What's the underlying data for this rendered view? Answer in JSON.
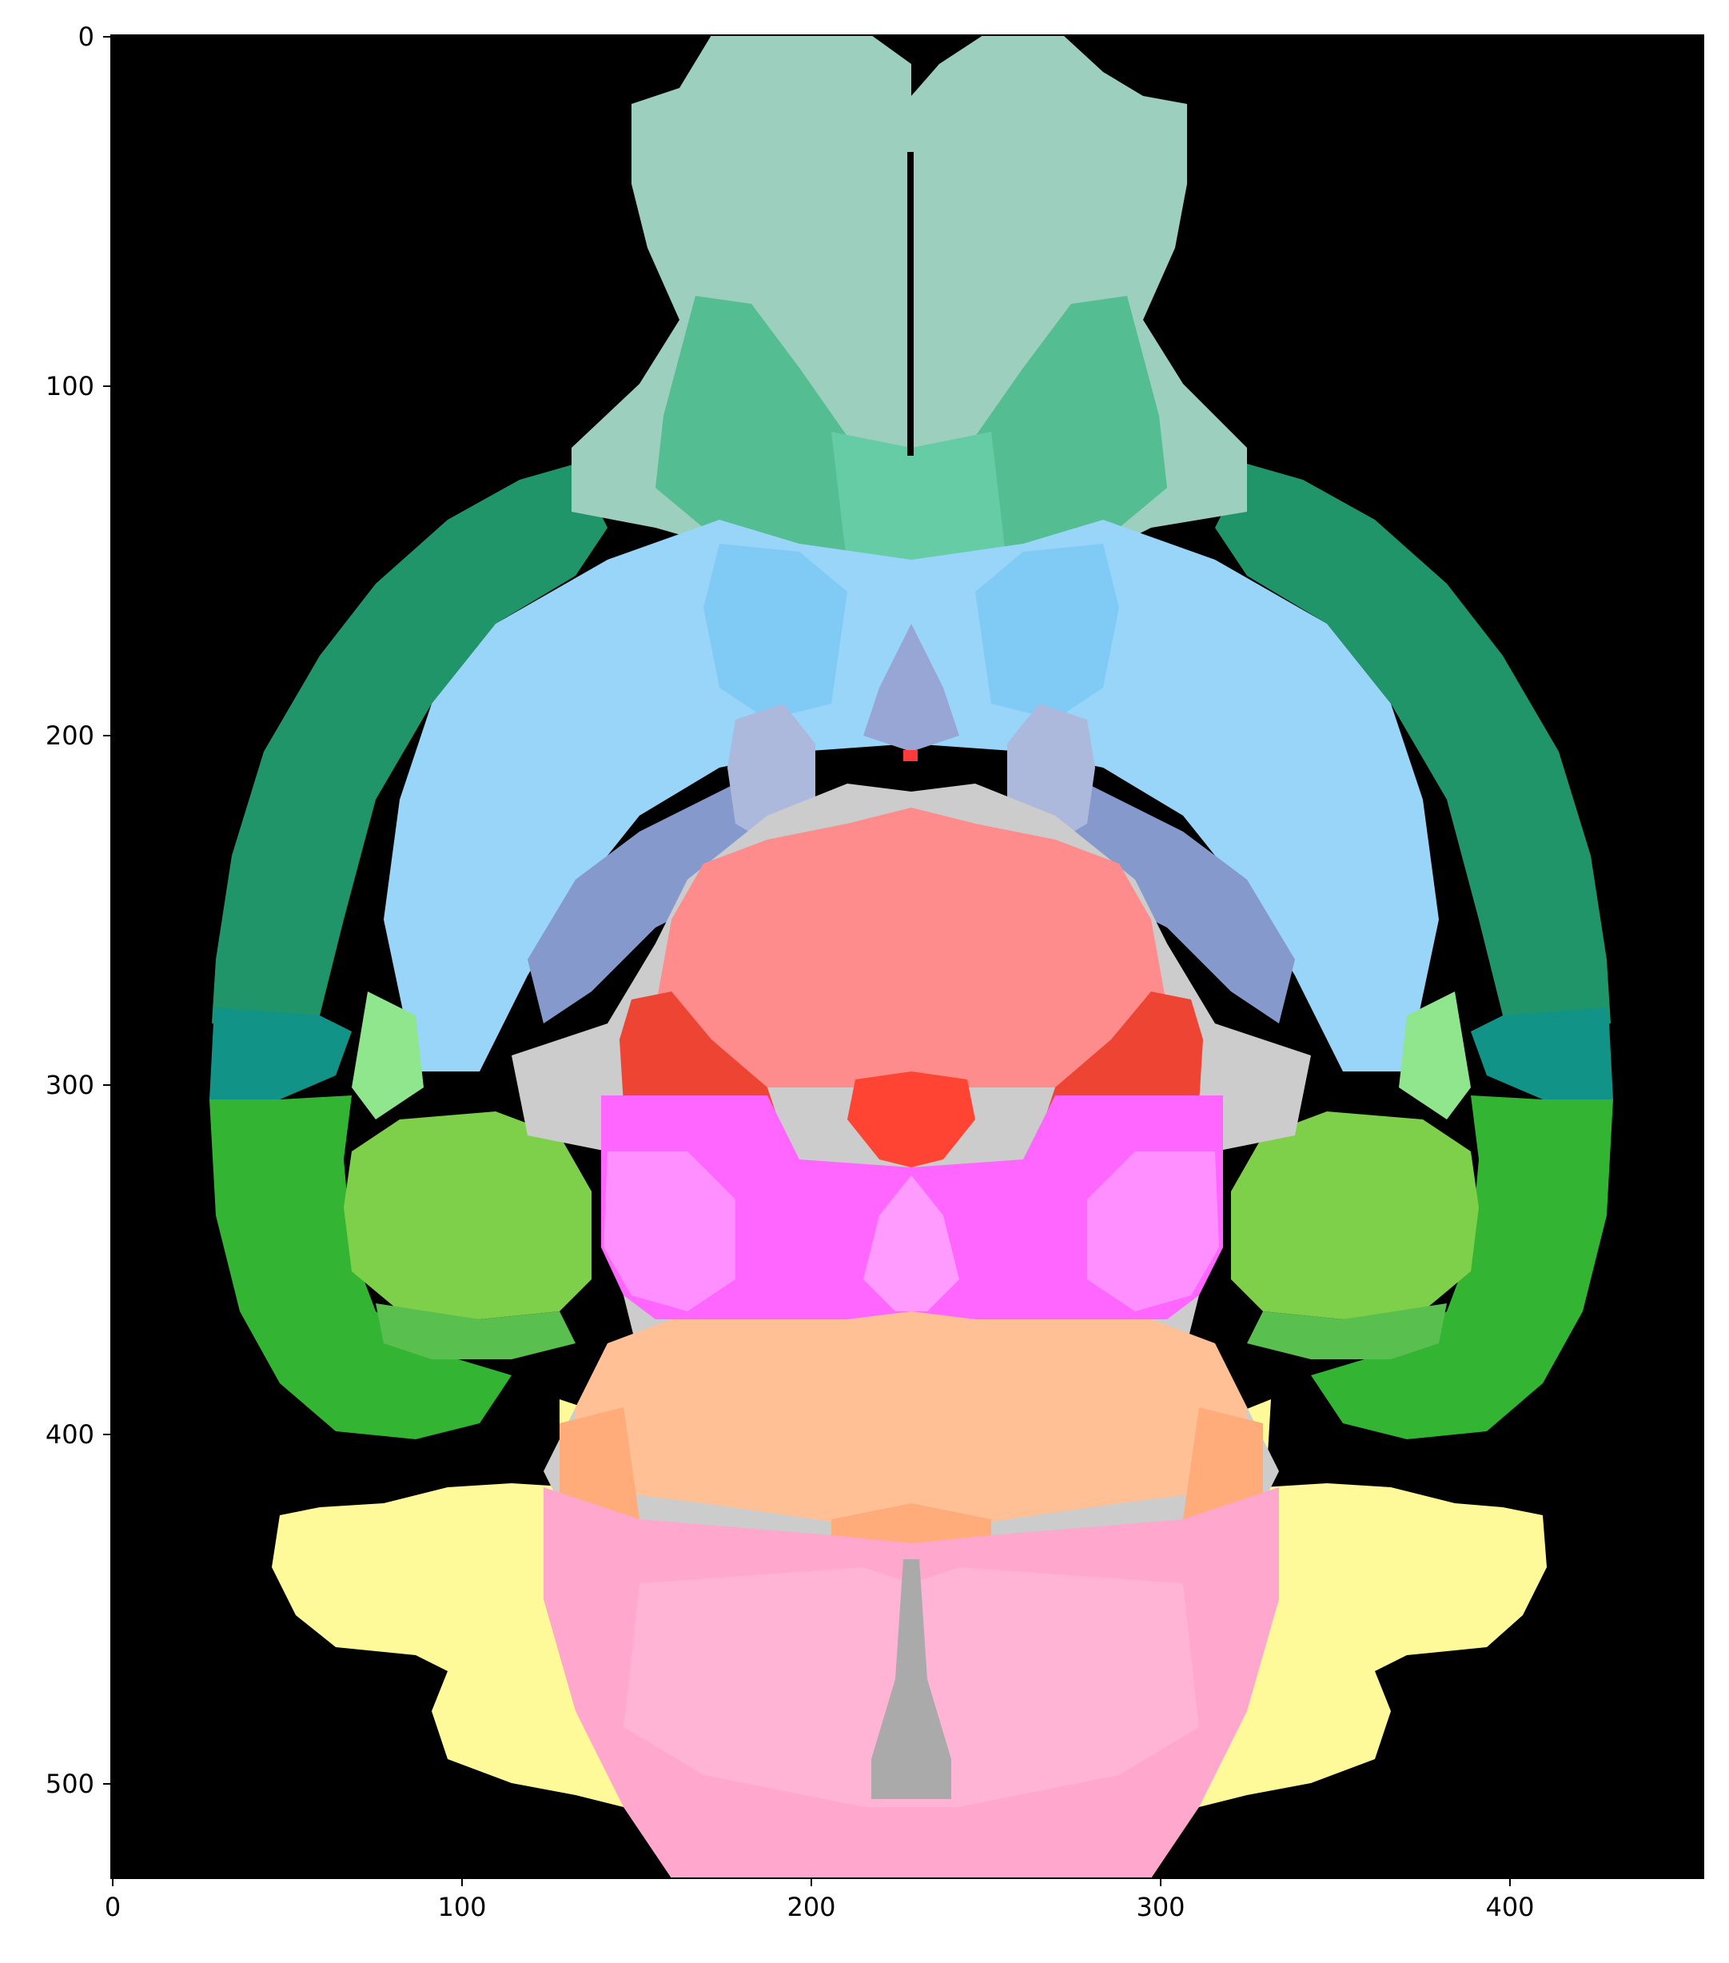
{
  "figure": {
    "type": "image",
    "title": "",
    "xlabel": "",
    "ylabel": "",
    "xlim": [
      0,
      456
    ],
    "ylim": [
      528,
      0
    ],
    "x_ticks": [
      "0",
      "100",
      "200",
      "300",
      "400"
    ],
    "y_ticks": [
      "0",
      "100",
      "200",
      "300",
      "400",
      "500"
    ],
    "background_color": "#000000",
    "palette": {
      "olfactory": "#9ccfbd",
      "olfactory_dark": "#54bd92",
      "cortex_dark": "#21956a",
      "cortex_teal": "#119487",
      "cortex_green": "#33b533",
      "hippocampus_light": "#7ecf4a",
      "hippocampus_mid": "#59bf4f",
      "striatum_light": "#98d5f8",
      "striatum_mid": "#80cbf5",
      "pallidum": "#8599cc",
      "pallidum_light": "#adb9dc",
      "thalamus": "#ff8c8c",
      "thalamus_dark": "#ee4433",
      "hypothalamus": "#ff66ff",
      "hypothalamus_light": "#ff8fff",
      "midbrain": "#ffc095",
      "midbrain_dark": "#ffab7a",
      "hindbrain": "#ffa7cc",
      "cerebellum": "#fffa99",
      "fiber_tracts": "#cccccc",
      "ventricles": "#aaaaaa"
    }
  }
}
